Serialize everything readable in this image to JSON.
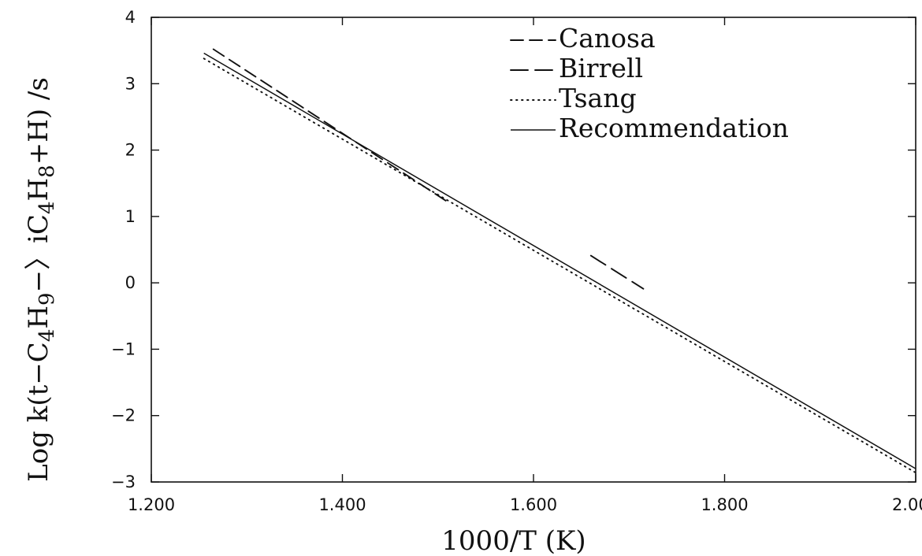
{
  "chart_data": {
    "type": "line",
    "xlabel": "1000/T (K)",
    "ylabel": {
      "text": "Log k(t-C4H9->iC4H8+H) /s",
      "parts": [
        {
          "t": "Log k(t−C"
        },
        {
          "t": "4",
          "sub": true
        },
        {
          "t": "H"
        },
        {
          "t": "9",
          "sub": true
        },
        {
          "t": "−〉iC"
        },
        {
          "t": "4",
          "sub": true
        },
        {
          "t": "H"
        },
        {
          "t": "8",
          "sub": true
        },
        {
          "t": "+H) /s"
        }
      ]
    },
    "xlim": [
      1.2,
      2.0
    ],
    "ylim": [
      -3,
      4
    ],
    "xticks": [
      1.2,
      1.4,
      1.6,
      1.8,
      2.0
    ],
    "xtick_labels": [
      "1.200",
      "1.400",
      "1.600",
      "1.800",
      "2.000"
    ],
    "yticks": [
      -3,
      -2,
      -1,
      0,
      1,
      2,
      3,
      4
    ],
    "ytick_labels": [
      "−3",
      "−2",
      "−1",
      "0",
      "1",
      "2",
      "3",
      "4"
    ],
    "legend_position": "top-right",
    "grid": false,
    "series": [
      {
        "name": "Canosa",
        "style": "longdash",
        "x": [
          1.265,
          1.51
        ],
        "y": [
          3.52,
          1.22
        ]
      },
      {
        "name": "Birrell",
        "style": "dash",
        "x": [
          1.66,
          1.715
        ],
        "y": [
          0.41,
          -0.09
        ]
      },
      {
        "name": "Tsang",
        "style": "dotted",
        "x": [
          1.255,
          2.0
        ],
        "y": [
          3.38,
          -2.86
        ]
      },
      {
        "name": "Recommendation",
        "style": "solid",
        "x": [
          1.255,
          2.0
        ],
        "y": [
          3.46,
          -2.8
        ]
      }
    ]
  }
}
